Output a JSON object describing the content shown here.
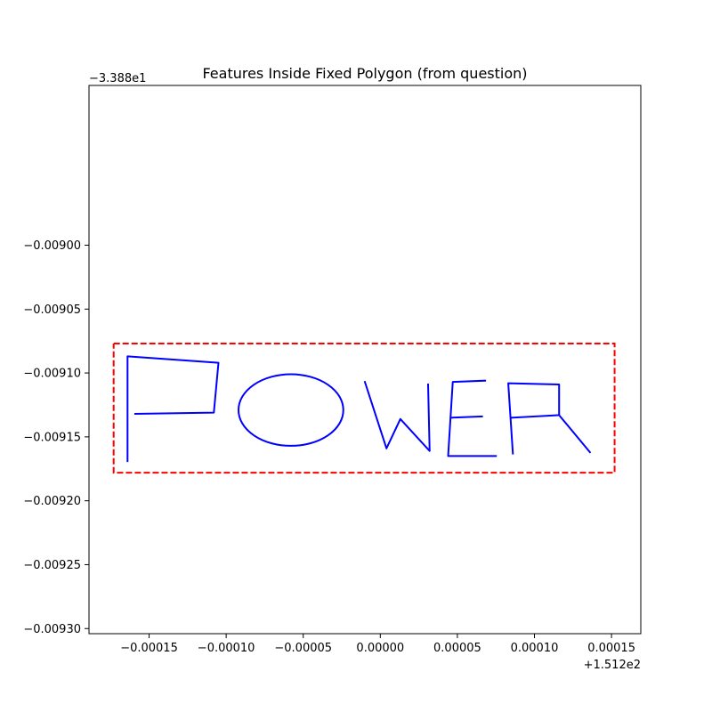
{
  "chart_data": {
    "type": "line",
    "title": "Features Inside Fixed Polygon (from question)",
    "xlabel": "",
    "ylabel": "",
    "x_offset_text": "+1.512e2",
    "y_offset_text": "−3.388e1",
    "xlim": [
      -0.000189,
      0.000169
    ],
    "ylim": [
      -0.009304,
      -0.008875
    ],
    "x_ticks": [
      -0.00015,
      -0.0001,
      -5e-05,
      0.0,
      5e-05,
      0.0001,
      0.00015
    ],
    "x_tick_labels": [
      "−0.00015",
      "−0.00010",
      "−0.00005",
      "0.00000",
      "0.00005",
      "0.00010",
      "0.00015"
    ],
    "y_ticks": [
      -0.009,
      -0.00905,
      -0.0091,
      -0.00915,
      -0.0092,
      -0.00925,
      -0.0093
    ],
    "y_tick_labels": [
      "−0.00900",
      "−0.00905",
      "−0.00910",
      "−0.00915",
      "−0.00920",
      "−0.00925",
      "−0.00930"
    ],
    "grid": false,
    "colors": {
      "features": "#0000ff",
      "polygon": "#ff0000"
    },
    "polygon": {
      "style": "dashed",
      "points": [
        [
          -0.000173,
          -0.009077
        ],
        [
          0.000152,
          -0.009077
        ],
        [
          0.000152,
          -0.009178
        ],
        [
          -0.000173,
          -0.009178
        ],
        [
          -0.000173,
          -0.009077
        ]
      ]
    },
    "series": [
      {
        "points": [
          [
            -0.000164,
            -0.009169
          ],
          [
            -0.000164,
            -0.009087
          ],
          [
            -0.000105,
            -0.009092
          ],
          [
            -0.000108,
            -0.009131
          ],
          [
            -0.000159,
            -0.009132
          ]
        ]
      },
      {
        "shape": "ellipse",
        "center": [
          -5.8e-05,
          -0.009129
        ],
        "radius_x": 3.4e-05,
        "radius_y": 2.8e-05
      },
      {
        "points": [
          [
            -1e-05,
            -0.009107
          ],
          [
            4e-06,
            -0.009159
          ],
          [
            1.3e-05,
            -0.009136
          ],
          [
            3.2e-05,
            -0.009161
          ],
          [
            3.1e-05,
            -0.009109
          ]
        ]
      },
      {
        "points": [
          [
            6.8e-05,
            -0.009106
          ],
          [
            4.7e-05,
            -0.009107
          ],
          [
            4.4e-05,
            -0.009165
          ],
          [
            7.5e-05,
            -0.009165
          ]
        ]
      },
      {
        "points": [
          [
            4.6e-05,
            -0.009135
          ],
          [
            6.6e-05,
            -0.009134
          ]
        ]
      },
      {
        "points": [
          [
            8.6e-05,
            -0.009163
          ],
          [
            8.3e-05,
            -0.009108
          ],
          [
            0.000116,
            -0.009109
          ],
          [
            0.000116,
            -0.009133
          ],
          [
            0.000136,
            -0.009162
          ]
        ]
      },
      {
        "points": [
          [
            8.5e-05,
            -0.009135
          ],
          [
            0.000116,
            -0.009133
          ]
        ]
      }
    ]
  }
}
